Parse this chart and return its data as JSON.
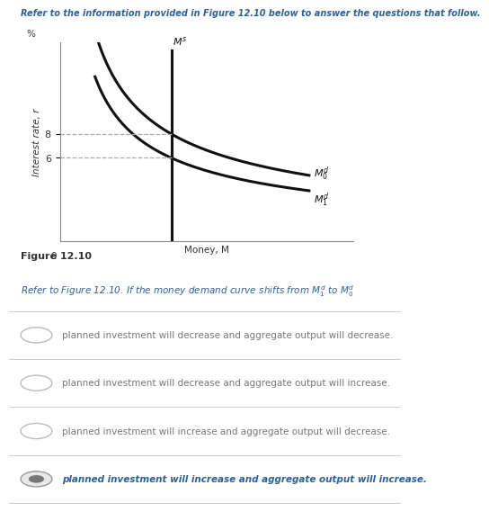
{
  "header_text": "Refer to the information provided in Figure 12.10 below to answer the questions that follow.",
  "header_color": "#2e6096",
  "figure_label": "Figure 12.10",
  "figure_label_color": "#333333",
  "ylabel": "Interest rate, r",
  "xlabel": "Money, M",
  "percent_label": "%",
  "dashed_line_color": "#aaaaaa",
  "curve_color": "#111111",
  "question_color": "#2e6096",
  "options": [
    "planned investment will decrease and aggregate output will decrease.",
    "planned investment will decrease and aggregate output will increase.",
    "planned investment will increase and aggregate output will decrease.",
    "planned investment will increase and aggregate output will increase."
  ],
  "correct_option": 3,
  "option_text_color": "#777777",
  "correct_text_color": "#2e6096",
  "separator_color": "#cccccc",
  "bg_color": "#ffffff",
  "ms_x": 3.8,
  "xlim": [
    0,
    10
  ],
  "ylim": [
    0,
    12
  ],
  "demand0_a": 14.5,
  "demand0_b": 0.55,
  "demand0_c": 0.5,
  "demand1_a": 11.5,
  "demand1_b": 0.55,
  "demand1_c": 0.5,
  "demand_x_start": 1.2,
  "demand_x_end": 8.5,
  "r8_label": "8",
  "r6_label": "6"
}
